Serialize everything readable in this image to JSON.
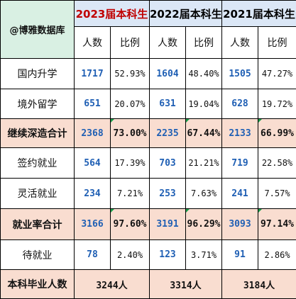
{
  "header": {
    "watermark": "@博雅数据库",
    "years": [
      "2023届本科生",
      "2022届本科生",
      "2021届本科生"
    ],
    "col_count": "人数",
    "col_ratio": "比例"
  },
  "rows": [
    {
      "label": "国内升学",
      "type": "normal",
      "vals": [
        {
          "n": "1717",
          "p": "52.93%"
        },
        {
          "n": "1604",
          "p": "48.40%"
        },
        {
          "n": "1505",
          "p": "47.27%"
        }
      ]
    },
    {
      "label": "境外留学",
      "type": "normal",
      "vals": [
        {
          "n": "651",
          "p": "20.07%"
        },
        {
          "n": "631",
          "p": "19.04%"
        },
        {
          "n": "628",
          "p": "19.72%"
        }
      ]
    },
    {
      "label": "继续深造合计",
      "type": "summary",
      "vals": [
        {
          "n": "2368",
          "p": "73.00%"
        },
        {
          "n": "2235",
          "p": "67.44%"
        },
        {
          "n": "2133",
          "p": "66.99%"
        }
      ]
    },
    {
      "label": "签约就业",
      "type": "normal",
      "vals": [
        {
          "n": "564",
          "p": "17.39%"
        },
        {
          "n": "703",
          "p": "21.21%"
        },
        {
          "n": "719",
          "p": "22.58%"
        }
      ]
    },
    {
      "label": "灵活就业",
      "type": "normal",
      "vals": [
        {
          "n": "234",
          "p": "7.21%"
        },
        {
          "n": "253",
          "p": "7.63%"
        },
        {
          "n": "241",
          "p": "7.57%"
        }
      ]
    },
    {
      "label": "就业率合计",
      "type": "summary",
      "vals": [
        {
          "n": "3166",
          "p": "97.60%"
        },
        {
          "n": "3191",
          "p": "96.29%"
        },
        {
          "n": "3093",
          "p": "97.14%"
        }
      ]
    },
    {
      "label": "待就业",
      "type": "normal",
      "vals": [
        {
          "n": "78",
          "p": "2.40%"
        },
        {
          "n": "123",
          "p": "3.71%"
        },
        {
          "n": "91",
          "p": "2.86%"
        }
      ]
    }
  ],
  "footer": {
    "label": "本科毕业人数",
    "totals": [
      "3244人",
      "3314人",
      "3184人"
    ]
  },
  "colors": {
    "header_green": "#d9f0e3",
    "header_blue": "#dbe7f6",
    "summary_row": "#f9ddd0",
    "number_blue": "#1f5fb4",
    "year_2023_red": "#c00000"
  }
}
